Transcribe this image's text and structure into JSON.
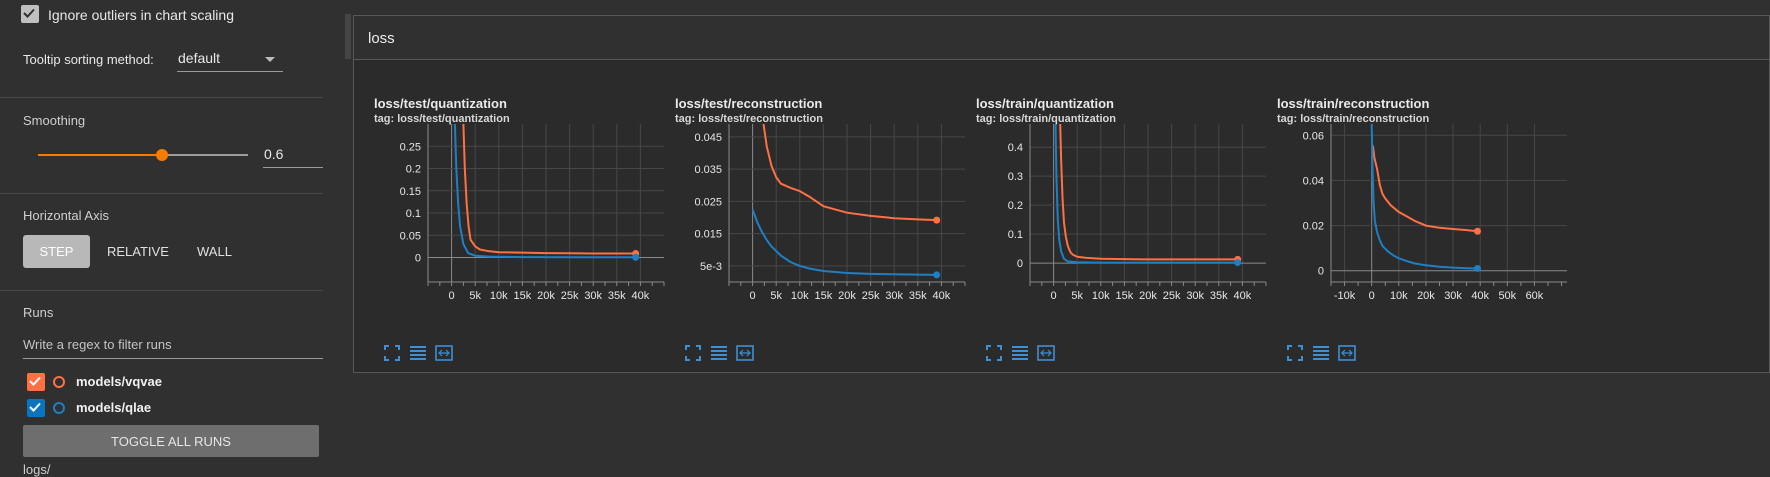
{
  "sidebar": {
    "ignore_outliers": {
      "label": "Ignore outliers in chart scaling",
      "checked": true
    },
    "tooltip_sorting": {
      "label": "Tooltip sorting method:",
      "value": "default"
    },
    "smoothing": {
      "label": "Smoothing",
      "value": "0.6",
      "fraction": 0.6
    },
    "horizontal_axis": {
      "label": "Horizontal Axis",
      "options": [
        "STEP",
        "RELATIVE",
        "WALL"
      ],
      "selected": "STEP"
    },
    "runs": {
      "label": "Runs",
      "filter_placeholder": "Write a regex to filter runs",
      "items": [
        {
          "name": "models/vqvae",
          "color": "#ff7043",
          "checked": true
        },
        {
          "name": "models/qlae",
          "color": "#0077bb",
          "checked": true
        }
      ],
      "toggle_all_label": "TOGGLE ALL RUNS",
      "log_dir": "logs/"
    }
  },
  "main": {
    "group_title": "loss"
  },
  "colors": {
    "vqvae": "#ff7043",
    "qlae": "#1f7fc4",
    "accent": "#f57c00"
  },
  "chart_data": [
    {
      "type": "line",
      "title": "loss/test/quantization",
      "tag": "tag: loss/test/quantization",
      "x_ticks": [
        0,
        5000,
        10000,
        15000,
        20000,
        25000,
        30000,
        35000,
        40000
      ],
      "x_tick_labels": [
        "0",
        "5k",
        "10k",
        "15k",
        "20k",
        "25k",
        "30k",
        "35k",
        "40k"
      ],
      "y_ticks": [
        0,
        0.05,
        0.1,
        0.15,
        0.2,
        0.25
      ],
      "y_tick_labels": [
        "0",
        "0.05",
        "0.1",
        "0.15",
        "0.2",
        "0.25"
      ],
      "xlim": [
        -5000,
        45000
      ],
      "ylim": [
        -0.055,
        0.3
      ],
      "series": [
        {
          "name": "models/vqvae",
          "color": "#ff7043",
          "x": [
            2500,
            2800,
            3200,
            3600,
            4000,
            5000,
            6000,
            8000,
            10000,
            15000,
            20000,
            25000,
            30000,
            35000,
            39000
          ],
          "y": [
            0.3,
            0.2,
            0.12,
            0.07,
            0.04,
            0.025,
            0.018,
            0.014,
            0.012,
            0.011,
            0.01,
            0.0095,
            0.009,
            0.009,
            0.009
          ]
        },
        {
          "name": "models/qlae",
          "color": "#1f7fc4",
          "x": [
            700,
            1000,
            1400,
            1800,
            2500,
            3500,
            5000,
            8000,
            15000,
            25000,
            39000
          ],
          "y": [
            0.3,
            0.2,
            0.12,
            0.07,
            0.03,
            0.01,
            0.004,
            0.002,
            0.001,
            0.0005,
            0.0005
          ]
        }
      ]
    },
    {
      "type": "line",
      "title": "loss/test/reconstruction",
      "tag": "tag: loss/test/reconstruction",
      "x_ticks": [
        0,
        5000,
        10000,
        15000,
        20000,
        25000,
        30000,
        35000,
        40000
      ],
      "x_tick_labels": [
        "0",
        "5k",
        "10k",
        "15k",
        "20k",
        "25k",
        "30k",
        "35k",
        "40k"
      ],
      "y_ticks": [
        0.005,
        0.015,
        0.025,
        0.035,
        0.045
      ],
      "y_tick_labels": [
        "5e-3",
        "0.015",
        "0.025",
        "0.035",
        "0.045"
      ],
      "xlim": [
        -5000,
        45000
      ],
      "ylim": [
        0.0,
        0.049
      ],
      "series": [
        {
          "name": "models/vqvae",
          "color": "#ff7043",
          "x": [
            2300,
            3000,
            4000,
            5000,
            6000,
            8000,
            10000,
            12000,
            15000,
            20000,
            25000,
            30000,
            35000,
            39000
          ],
          "y": [
            0.049,
            0.042,
            0.036,
            0.0325,
            0.0305,
            0.0292,
            0.0282,
            0.0265,
            0.0235,
            0.0215,
            0.0205,
            0.0198,
            0.0194,
            0.0192
          ]
        },
        {
          "name": "models/qlae",
          "color": "#1f7fc4",
          "x": [
            0,
            1000,
            2000,
            3000,
            4000,
            6000,
            8000,
            10000,
            12000,
            15000,
            20000,
            25000,
            30000,
            35000,
            39000
          ],
          "y": [
            0.0225,
            0.0185,
            0.0155,
            0.013,
            0.011,
            0.0082,
            0.0062,
            0.005,
            0.0042,
            0.0034,
            0.0028,
            0.0025,
            0.0024,
            0.0023,
            0.0022
          ]
        }
      ]
    },
    {
      "type": "line",
      "title": "loss/train/quantization",
      "tag": "tag: loss/train/quantization",
      "x_ticks": [
        0,
        5000,
        10000,
        15000,
        20000,
        25000,
        30000,
        35000,
        40000
      ],
      "x_tick_labels": [
        "0",
        "5k",
        "10k",
        "15k",
        "20k",
        "25k",
        "30k",
        "35k",
        "40k"
      ],
      "y_ticks": [
        0,
        0.1,
        0.2,
        0.3,
        0.4
      ],
      "y_tick_labels": [
        "0",
        "0.1",
        "0.2",
        "0.3",
        "0.4"
      ],
      "xlim": [
        -5000,
        45000
      ],
      "ylim": [
        -0.065,
        0.48
      ],
      "series": [
        {
          "name": "models/vqvae",
          "color": "#ff7043",
          "x": [
            1400,
            1600,
            1900,
            2200,
            2600,
            3000,
            3500,
            4000,
            5000,
            7000,
            10000,
            15000,
            20000,
            25000,
            30000,
            35000,
            39000
          ],
          "y": [
            0.48,
            0.35,
            0.22,
            0.14,
            0.09,
            0.06,
            0.04,
            0.03,
            0.022,
            0.018,
            0.015,
            0.014,
            0.013,
            0.013,
            0.013,
            0.013,
            0.013
          ]
        },
        {
          "name": "models/qlae",
          "color": "#1f7fc4",
          "x": [
            400,
            600,
            900,
            1200,
            1600,
            2200,
            3000,
            5000,
            10000,
            20000,
            39000
          ],
          "y": [
            0.48,
            0.3,
            0.15,
            0.08,
            0.04,
            0.015,
            0.006,
            0.003,
            0.002,
            0.002,
            0.002
          ]
        }
      ]
    },
    {
      "type": "line",
      "title": "loss/train/reconstruction",
      "tag": "tag: loss/train/reconstruction",
      "x_ticks": [
        -10000,
        0,
        10000,
        20000,
        30000,
        40000,
        50000,
        60000
      ],
      "x_tick_labels": [
        "-10k",
        "0",
        "10k",
        "20k",
        "30k",
        "40k",
        "50k",
        "60k"
      ],
      "y_ticks": [
        0,
        0.02,
        0.04,
        0.06
      ],
      "y_tick_labels": [
        "0",
        "0.02",
        "0.04",
        "0.06"
      ],
      "xlim": [
        -15000,
        72000
      ],
      "ylim": [
        -0.005,
        0.065
      ],
      "series": [
        {
          "name": "models/vqvae",
          "color": "#ff7043",
          "x": [
            0,
            500,
            1000,
            2000,
            3000,
            4000,
            5000,
            7000,
            10000,
            13000,
            16000,
            20000,
            25000,
            30000,
            35000,
            39000
          ],
          "y": [
            0.056,
            0.055,
            0.05,
            0.045,
            0.038,
            0.034,
            0.032,
            0.029,
            0.026,
            0.024,
            0.022,
            0.02,
            0.019,
            0.0185,
            0.018,
            0.0175
          ]
        },
        {
          "name": "models/qlae",
          "color": "#1f7fc4",
          "x": [
            0,
            300,
            700,
            1200,
            2000,
            3000,
            4000,
            6000,
            8000,
            10000,
            13000,
            16000,
            20000,
            25000,
            30000,
            35000,
            39000
          ],
          "y": [
            0.065,
            0.045,
            0.03,
            0.022,
            0.017,
            0.0135,
            0.011,
            0.0085,
            0.0068,
            0.0055,
            0.0042,
            0.0032,
            0.0024,
            0.0018,
            0.0014,
            0.0011,
            0.001
          ]
        }
      ]
    }
  ]
}
